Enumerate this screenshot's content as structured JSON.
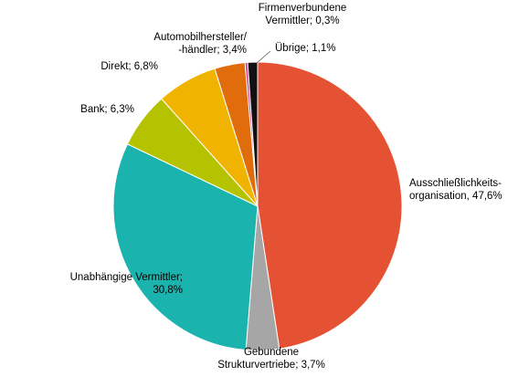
{
  "chart_data": {
    "type": "pie",
    "title": "",
    "start_angle_deg": 0,
    "direction": "clockwise",
    "slices": [
      {
        "label_lines": [
          "Ausschließlichkeits-",
          "organisation, 47,6%"
        ],
        "name": "Ausschließlichkeitsorganisation",
        "value": 47.6,
        "color": "#e55233",
        "label_side": "right"
      },
      {
        "label_lines": [
          "Gebundene",
          "Strukturvertriebe; 3,7%"
        ],
        "name": "Gebundene Strukturvertriebe",
        "value": 3.7,
        "color": "#a6a6a6",
        "label_side": "bottom"
      },
      {
        "label_lines": [
          "Unabhängige Vermittler;",
          "30,8%"
        ],
        "name": "Unabhängige Vermittler",
        "value": 30.8,
        "color": "#1bb3ad",
        "label_side": "left"
      },
      {
        "label_lines": [
          "Bank; 6,3%"
        ],
        "name": "Bank",
        "value": 6.3,
        "color": "#b5c200",
        "label_side": "left"
      },
      {
        "label_lines": [
          "Direkt; 6,8%"
        ],
        "name": "Direkt",
        "value": 6.8,
        "color": "#f0b400",
        "label_side": "left"
      },
      {
        "label_lines": [
          "Automobilhersteller/",
          "-händler; 3,4%"
        ],
        "name": "Automobilhersteller/-händler",
        "value": 3.4,
        "color": "#e06c0b",
        "label_side": "top"
      },
      {
        "label_lines": [
          "Firmenverbundene",
          "Vermittler; 0,3%"
        ],
        "name": "Firmenverbundene Vermittler",
        "value": 0.3,
        "color": "#d4449a",
        "label_side": "top"
      },
      {
        "label_lines": [
          "Übrige; 1,1%"
        ],
        "name": "Übrige",
        "value": 1.1,
        "color": "#111111",
        "label_side": "top"
      }
    ]
  }
}
